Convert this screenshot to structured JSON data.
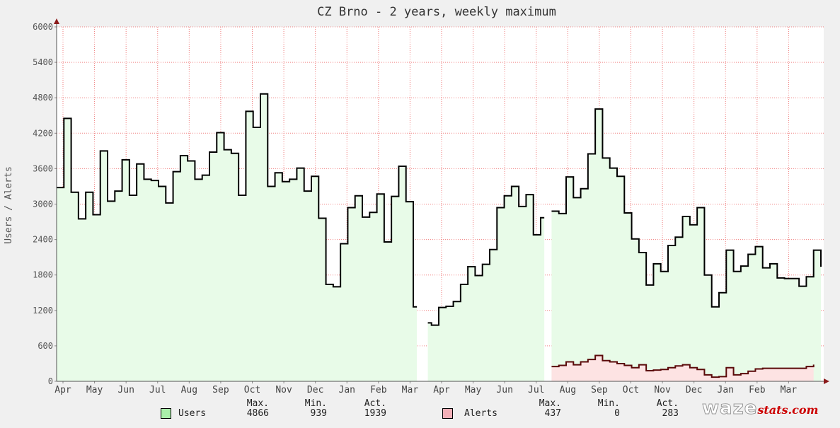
{
  "chart_data": {
    "type": "area",
    "title": "CZ Brno - 2 years, weekly maximum",
    "ylabel": "Users / Alerts",
    "xlabel": "",
    "ylim": [
      0,
      6000
    ],
    "yticks": [
      0,
      600,
      1200,
      1800,
      2400,
      3000,
      3600,
      4200,
      4800,
      5400,
      6000
    ],
    "x_axis_labels": [
      "Apr",
      "May",
      "Jun",
      "Jul",
      "Aug",
      "Sep",
      "Oct",
      "Nov",
      "Dec",
      "Jan",
      "Feb",
      "Mar",
      "Apr",
      "May",
      "Jun",
      "Jul",
      "Aug",
      "Sep",
      "Oct",
      "Nov",
      "Dec",
      "Jan",
      "Feb",
      "Mar"
    ],
    "x_unit": "week",
    "grid": true,
    "series": [
      {
        "name": "Users",
        "color": "#000000",
        "fill": "#e8fbe8",
        "values": [
          3280,
          3280,
          4450,
          4450,
          3200,
          3200,
          2750,
          2750,
          3200,
          3200,
          2820,
          2820,
          3900,
          3900,
          3050,
          3050,
          3220,
          3220,
          3750,
          3750,
          3150,
          3150,
          3680,
          3680,
          3420,
          3420,
          3400,
          3400,
          3300,
          3300,
          3020,
          3020,
          3550,
          3550,
          3820,
          3820,
          3730,
          3730,
          3420,
          3420,
          3490,
          3490,
          3880,
          3880,
          4210,
          4210,
          3920,
          3920,
          3860,
          3860,
          3150,
          3150,
          4570,
          4570,
          4300,
          4300,
          4866,
          4866,
          3300,
          3300,
          3530,
          3530,
          3380,
          3380,
          3420,
          3420,
          3610,
          3610,
          3220,
          3220,
          3470,
          3470,
          2760,
          2760,
          1640,
          1640,
          1600,
          1600,
          2330,
          2330,
          2940,
          2940,
          3140,
          3140,
          2780,
          2780,
          2860,
          2860,
          3170,
          3170,
          2360,
          2360,
          3130,
          3130,
          3640,
          3640,
          3040,
          3040,
          1260,
          1260,
          null,
          null,
          990,
          950,
          950,
          1250,
          1250,
          1270,
          1270,
          1350,
          1350,
          1640,
          1640,
          1940,
          1940,
          1790,
          1790,
          1980,
          1980,
          2230,
          2230,
          2940,
          2940,
          3140,
          3140,
          3300,
          3300,
          2960,
          2960,
          3160,
          3160,
          2480,
          2480,
          2770,
          2770,
          null,
          2880,
          2880,
          2840,
          2840,
          3460,
          3460,
          3110,
          3110,
          3260,
          3260,
          3850,
          3850,
          4610,
          4610,
          3780,
          3780,
          3610,
          3610,
          3470,
          3470,
          2850,
          2850,
          2410,
          2410,
          2180,
          2180,
          1630,
          1630,
          1990,
          1990,
          1860,
          1860,
          2300,
          2300,
          2440,
          2440,
          2790,
          2790,
          2650,
          2650,
          2940,
          2940,
          1800,
          1800,
          1260,
          1260,
          1500,
          1500,
          2220,
          2220,
          1860,
          1860,
          1950,
          1950,
          2150,
          2150,
          2280,
          2280,
          1920,
          1920,
          1990,
          1990,
          1750,
          1750,
          1740,
          1740,
          1740,
          1740,
          1610,
          1610,
          1770,
          1770,
          2220,
          2220,
          1939
        ]
      },
      {
        "name": "Alerts",
        "color": "#5a0a0a",
        "fill": "#fde3e3",
        "values": [
          null,
          null,
          null,
          null,
          null,
          null,
          null,
          null,
          null,
          null,
          null,
          null,
          null,
          null,
          null,
          null,
          null,
          null,
          null,
          null,
          null,
          null,
          null,
          null,
          null,
          null,
          null,
          null,
          null,
          null,
          null,
          null,
          null,
          null,
          null,
          null,
          null,
          null,
          null,
          null,
          null,
          null,
          null,
          null,
          null,
          null,
          null,
          null,
          null,
          null,
          null,
          null,
          null,
          null,
          null,
          null,
          null,
          null,
          null,
          null,
          null,
          null,
          null,
          null,
          null,
          null,
          null,
          null,
          null,
          null,
          null,
          null,
          null,
          null,
          null,
          null,
          null,
          null,
          null,
          null,
          null,
          null,
          null,
          null,
          null,
          null,
          null,
          null,
          null,
          null,
          null,
          null,
          null,
          null,
          null,
          null,
          null,
          null,
          null,
          null,
          null,
          null,
          null,
          null,
          null,
          null,
          null,
          null,
          null,
          null,
          null,
          null,
          null,
          null,
          null,
          null,
          null,
          null,
          null,
          null,
          null,
          null,
          null,
          null,
          null,
          null,
          null,
          null,
          null,
          null,
          null,
          null,
          null,
          null,
          null,
          null,
          250,
          250,
          270,
          270,
          330,
          330,
          280,
          280,
          330,
          330,
          370,
          370,
          437,
          437,
          350,
          350,
          330,
          330,
          300,
          300,
          270,
          270,
          230,
          230,
          280,
          280,
          180,
          180,
          190,
          190,
          200,
          200,
          230,
          230,
          260,
          260,
          280,
          280,
          230,
          230,
          200,
          200,
          110,
          110,
          70,
          70,
          80,
          80,
          230,
          230,
          110,
          110,
          130,
          130,
          170,
          170,
          210,
          210,
          220,
          220,
          220,
          220,
          220,
          220,
          220,
          220,
          220,
          220,
          220,
          220,
          250,
          250,
          283
        ]
      }
    ]
  },
  "legend": {
    "headers": {
      "max": "Max.",
      "min": "Min.",
      "act": "Act."
    },
    "users": {
      "label": "Users",
      "color": "#aaf0aa",
      "max": "4866",
      "min": "939",
      "act": "1939"
    },
    "alerts": {
      "label": "Alerts",
      "color": "#f4b0b8",
      "max": "437",
      "min": "0",
      "act": "283"
    }
  },
  "brand": {
    "waze": "waze",
    "stats": "stats.com"
  }
}
